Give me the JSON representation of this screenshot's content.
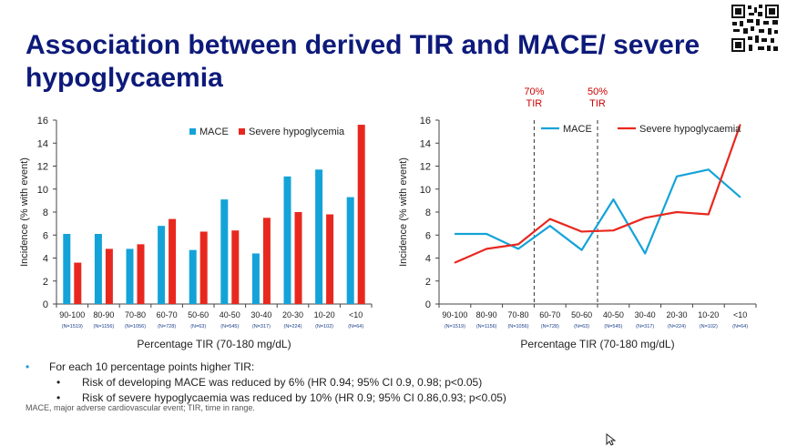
{
  "slide": {
    "title": "Association between derived TIR and MACE/ severe hypoglycaemia",
    "qr_icon": "qr-code-icon",
    "bullet_main": "For each 10 percentage points higher TIR:",
    "bullet_sub1": "Risk of developing MACE was reduced by 6% (HR 0.94; 95% CI 0.9, 0.98; p<0.05)",
    "bullet_sub2": "Risk of severe hypoglycaemia was reduced by 10% (HR 0.9; 95% CI 0.86,0.93; p<0.05)",
    "footnote": "MACE, major adverse cardiovascular event; TIR, time in range.",
    "cursor_icon": "mouse-pointer-icon"
  },
  "colors": {
    "mace": "#14a3d8",
    "hypo": "#e8281f",
    "title": "#0d1a7a",
    "annotation": "#cc0000"
  },
  "chart_data": [
    {
      "type": "bar",
      "categories": [
        "90-100",
        "80-90",
        "70-80",
        "60-70",
        "50-60",
        "40-50",
        "30-40",
        "20-30",
        "10-20",
        "<10"
      ],
      "n_labels": [
        "(N=1519)",
        "(N=1156)",
        "(N=1056)",
        "(N=728)",
        "(N=63)",
        "(N=545)",
        "(N=317)",
        "(N=224)",
        "(N=102)",
        "(N=64)"
      ],
      "series": [
        {
          "name": "MACE",
          "values": [
            6.1,
            6.1,
            4.8,
            6.8,
            4.7,
            9.1,
            4.4,
            11.1,
            11.7,
            9.3
          ]
        },
        {
          "name": "Severe hypoglycemia",
          "values": [
            3.6,
            4.8,
            5.2,
            7.4,
            6.3,
            6.4,
            7.5,
            8.0,
            7.8,
            15.6
          ]
        }
      ],
      "xlabel": "Percentage TIR (70-180 mg/dL)",
      "ylabel": "Incidence (% with event)",
      "ylim": [
        0,
        16
      ],
      "yticks": [
        0,
        2,
        4,
        6,
        8,
        10,
        12,
        14,
        16
      ],
      "grid": false,
      "legend": "top-right"
    },
    {
      "type": "line",
      "categories": [
        "90-100",
        "80-90",
        "70-80",
        "60-70",
        "50-60",
        "40-50",
        "30-40",
        "20-30",
        "10-20",
        "<10"
      ],
      "n_labels": [
        "(N=1519)",
        "(N=1156)",
        "(N=1056)",
        "(N=728)",
        "(N=63)",
        "(N=545)",
        "(N=317)",
        "(N=224)",
        "(N=102)",
        "(N=64)"
      ],
      "series": [
        {
          "name": "MACE",
          "values": [
            6.1,
            6.1,
            4.8,
            6.8,
            4.7,
            9.1,
            4.4,
            11.1,
            11.7,
            9.3
          ]
        },
        {
          "name": "Severe hypoglycaemia",
          "values": [
            3.6,
            4.8,
            5.2,
            7.4,
            6.3,
            6.4,
            7.5,
            8.0,
            7.8,
            15.6
          ]
        }
      ],
      "annotations": [
        {
          "line1": "70%",
          "line2": "TIR",
          "between": [
            "70-80",
            "60-70"
          ]
        },
        {
          "line1": "50%",
          "line2": "TIR",
          "between": [
            "50-60",
            "40-50"
          ]
        }
      ],
      "xlabel": "Percentage TIR (70-180 mg/dL)",
      "ylabel": "Incidence (% with event)",
      "ylim": [
        0,
        16
      ],
      "yticks": [
        0,
        2,
        4,
        6,
        8,
        10,
        12,
        14,
        16
      ],
      "grid": false,
      "legend": "top-right"
    }
  ]
}
